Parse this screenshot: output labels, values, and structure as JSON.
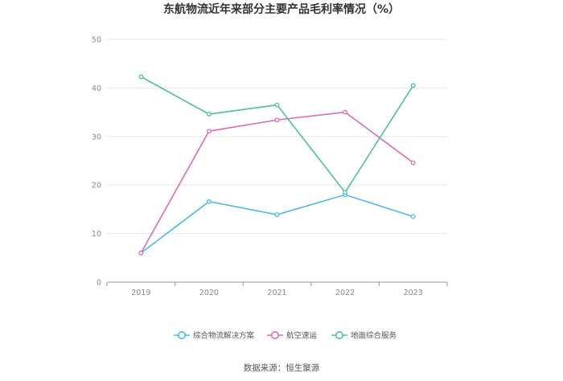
{
  "chart_data": {
    "type": "line",
    "title": "东航物流近年来部分主要产品毛利率情况（%）",
    "xlabel": "",
    "ylabel": "",
    "categories": [
      "2019",
      "2020",
      "2021",
      "2022",
      "2023"
    ],
    "ylim": [
      0,
      50
    ],
    "yticks": [
      "0",
      "10",
      "20",
      "30",
      "40",
      "50"
    ],
    "grid": true,
    "legend_position": "bottom",
    "series": [
      {
        "name": "综合物流解决方案",
        "color": "#4db8e8",
        "values": [
          6.0,
          16.6,
          13.9,
          18.0,
          13.5
        ]
      },
      {
        "name": "航空速运",
        "color": "#d96cb8",
        "values": [
          6.0,
          31.1,
          33.4,
          35.0,
          24.6
        ]
      },
      {
        "name": "地面综合服务",
        "color": "#4dbfa0",
        "values": [
          42.3,
          34.6,
          36.5,
          18.5,
          40.5
        ]
      }
    ]
  },
  "source": "数据来源：恒生聚源"
}
